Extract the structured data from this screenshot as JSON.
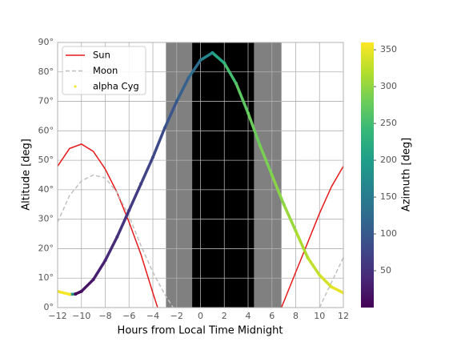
{
  "chart_data": {
    "type": "line",
    "xlabel": "Hours from Local Time Midnight",
    "ylabel": "Altitude [deg]",
    "xlim": [
      -12,
      12
    ],
    "ylim": [
      0,
      90
    ],
    "xticks": [
      {
        "value": -12,
        "label": "−12"
      },
      {
        "value": -10,
        "label": "−10"
      },
      {
        "value": -8,
        "label": "−8"
      },
      {
        "value": -6,
        "label": "−6"
      },
      {
        "value": -4,
        "label": "−4"
      },
      {
        "value": -2,
        "label": "−2"
      },
      0,
      2,
      4,
      6,
      8,
      10,
      12
    ],
    "yticks": [
      {
        "value": 0,
        "label": "0°"
      },
      {
        "value": 10,
        "label": "10°"
      },
      {
        "value": 20,
        "label": "20°"
      },
      {
        "value": 30,
        "label": "30°"
      },
      {
        "value": 40,
        "label": "40°"
      },
      {
        "value": 50,
        "label": "50°"
      },
      {
        "value": 60,
        "label": "60°"
      },
      {
        "value": 70,
        "label": "70°"
      },
      {
        "value": 80,
        "label": "80°"
      },
      {
        "value": 90,
        "label": "90°"
      }
    ],
    "grid": true,
    "legend": "upper left",
    "night_regions": [
      {
        "start": -2.9,
        "end": -0.7,
        "color": "#808080"
      },
      {
        "start": -0.7,
        "end": 4.5,
        "color": "#000000"
      },
      {
        "start": 4.5,
        "end": 6.8,
        "color": "#808080"
      }
    ],
    "series": [
      {
        "name": "Sun",
        "color": "#e8191a",
        "style": "solid",
        "x": [
          -12,
          -11,
          -10,
          -9,
          -8,
          -7,
          -6,
          -5,
          -4,
          -3.6,
          null,
          6.8,
          7,
          8,
          9,
          10,
          11,
          12
        ],
        "values": [
          48,
          54,
          55.5,
          53,
          47,
          39,
          29,
          18,
          5,
          0,
          null,
          0,
          2,
          12,
          22,
          32,
          41,
          48
        ]
      },
      {
        "name": "Moon",
        "color": "#c0c0c0",
        "style": "dashed",
        "x": [
          -12,
          -11,
          -10,
          -9,
          -8,
          -7,
          -6,
          -5,
          -4,
          -3,
          -2.3,
          null,
          10,
          11,
          12
        ],
        "values": [
          29,
          38,
          43,
          45,
          44,
          39,
          31,
          21,
          12,
          4.5,
          0,
          null,
          0,
          8.5,
          17
        ]
      },
      {
        "name": "alpha Cyg",
        "color": "#f2e51d",
        "style": "scatter",
        "x": [
          -12,
          -11,
          -10.5,
          -10,
          -9,
          -8,
          -7,
          -6,
          -5,
          -4,
          -3,
          -2,
          -1,
          0,
          1,
          2,
          3,
          4,
          5,
          6,
          7,
          8,
          9,
          10,
          11,
          12
        ],
        "values": [
          5.5,
          4.5,
          4.6,
          5.5,
          9.5,
          16,
          24,
          33,
          42,
          51,
          61,
          70,
          78,
          84,
          86.5,
          83,
          76,
          66,
          55,
          45,
          35,
          26,
          17,
          11,
          7,
          5
        ],
        "azimuth": [
          352,
          358,
          5,
          12,
          25,
          38,
          48,
          58,
          68,
          78,
          88,
          100,
          115,
          140,
          190,
          240,
          262,
          275,
          283,
          292,
          300,
          310,
          322,
          333,
          343,
          352
        ]
      }
    ],
    "colorbar": {
      "label": "Azimuth [deg]",
      "lim": [
        0,
        360
      ],
      "ticks": [
        50,
        100,
        150,
        200,
        250,
        300,
        350
      ],
      "colormap": "viridis"
    }
  }
}
